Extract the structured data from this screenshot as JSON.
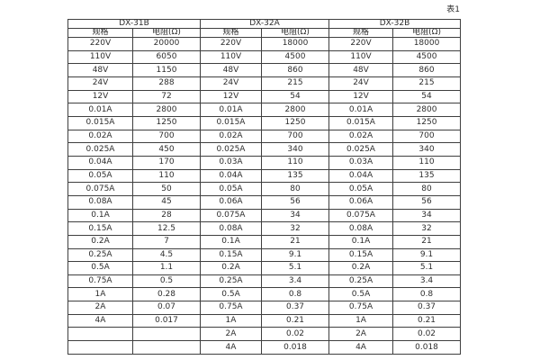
{
  "label": "表1",
  "table": {
    "groups": [
      {
        "name": "DX-31B",
        "columns": [
          "规格",
          "电阻(Ω)"
        ],
        "rows": [
          [
            "220V",
            "20000"
          ],
          [
            "110V",
            "6050"
          ],
          [
            "48V",
            "1150"
          ],
          [
            "24V",
            "288"
          ],
          [
            "12V",
            "72"
          ],
          [
            "0.01A",
            "2800"
          ],
          [
            "0.015A",
            "1250"
          ],
          [
            "0.02A",
            "700"
          ],
          [
            "0.025A",
            "450"
          ],
          [
            "0.04A",
            "170"
          ],
          [
            "0.05A",
            "110"
          ],
          [
            "0.075A",
            "50"
          ],
          [
            "0.08A",
            "45"
          ],
          [
            "0.1A",
            "28"
          ],
          [
            "0.15A",
            "12.5"
          ],
          [
            "0.2A",
            "7"
          ],
          [
            "0.25A",
            "4.5"
          ],
          [
            "0.5A",
            "1.1"
          ],
          [
            "0.75A",
            "0.5"
          ],
          [
            "1A",
            "0.28"
          ],
          [
            "2A",
            "0.07"
          ],
          [
            "4A",
            "0.017"
          ]
        ]
      },
      {
        "name": "DX-32A",
        "columns": [
          "规格",
          "电阻(Ω)"
        ],
        "rows": [
          [
            "220V",
            "18000"
          ],
          [
            "110V",
            "4500"
          ],
          [
            "48V",
            "860"
          ],
          [
            "24V",
            "215"
          ],
          [
            "12V",
            "54"
          ],
          [
            "0.01A",
            "2800"
          ],
          [
            "0.015A",
            "1250"
          ],
          [
            "0.02A",
            "700"
          ],
          [
            "0.025A",
            "340"
          ],
          [
            "0.03A",
            "110"
          ],
          [
            "0.04A",
            "135"
          ],
          [
            "0.05A",
            "80"
          ],
          [
            "0.06A",
            "56"
          ],
          [
            "0.075A",
            "34"
          ],
          [
            "0.08A",
            "32"
          ],
          [
            "0.1A",
            "21"
          ],
          [
            "0.15A",
            "9.1"
          ],
          [
            "0.2A",
            "5.1"
          ],
          [
            "0.25A",
            "3.4"
          ],
          [
            "0.5A",
            "0.8"
          ],
          [
            "0.75A",
            "0.37"
          ],
          [
            "1A",
            "0.21"
          ],
          [
            "2A",
            "0.02"
          ],
          [
            "4A",
            "0.018"
          ]
        ]
      },
      {
        "name": "DX-32B",
        "columns": [
          "规格",
          "电阻(Ω)"
        ],
        "rows": [
          [
            "220V",
            "18000"
          ],
          [
            "110V",
            "4500"
          ],
          [
            "48V",
            "860"
          ],
          [
            "24V",
            "215"
          ],
          [
            "12V",
            "54"
          ],
          [
            "0.01A",
            "2800"
          ],
          [
            "0.015A",
            "1250"
          ],
          [
            "0.02A",
            "700"
          ],
          [
            "0.025A",
            "340"
          ],
          [
            "0.03A",
            "110"
          ],
          [
            "0.04A",
            "135"
          ],
          [
            "0.05A",
            "80"
          ],
          [
            "0.06A",
            "56"
          ],
          [
            "0.075A",
            "34"
          ],
          [
            "0.08A",
            "32"
          ],
          [
            "0.1A",
            "21"
          ],
          [
            "0.15A",
            "9.1"
          ],
          [
            "0.2A",
            "5.1"
          ],
          [
            "0.25A",
            "3.4"
          ],
          [
            "0.5A",
            "0.8"
          ],
          [
            "0.75A",
            "0.37"
          ],
          [
            "1A",
            "0.21"
          ],
          [
            "2A",
            "0.02"
          ],
          [
            "4A",
            "0.018"
          ]
        ]
      }
    ]
  },
  "colors": {
    "border": "#3f3f3f",
    "text": "#2e2e2e",
    "background": "#ffffff"
  }
}
